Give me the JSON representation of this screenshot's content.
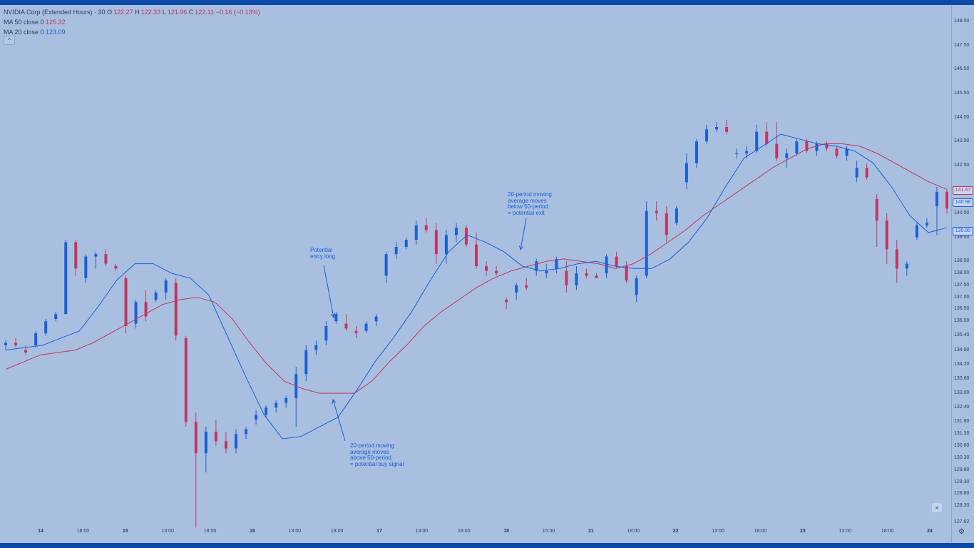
{
  "header": {
    "symbol": "NVIDIA Corp (Extended Hours) · 30",
    "o_label": "O",
    "o_value": "122.27",
    "h_label": "H",
    "h_value": "122.33",
    "l_label": "L",
    "l_value": "121.96",
    "c_label": "C",
    "c_value": "122.11",
    "change": "−0.16 (−0.13%)",
    "ma50_label": "MA 50 close 0",
    "ma50_value": "125.32",
    "ma20_label": "MA 20 close 0",
    "ma20_value": "123.09",
    "collapse_glyph": "^"
  },
  "annotations": {
    "entry": "Potential\nentry long",
    "exit": "20-period moving\naverage moves\nbelow 50-period\n= potential exit",
    "buy": "20-period moving\naverage moves\nabove 50-period\n= potential buy signal"
  },
  "price_axis": {
    "ticks": [
      "148.50",
      "147.50",
      "146.50",
      "145.50",
      "144.50",
      "143.50",
      "142.50",
      "141.47",
      "140.98",
      "140.50",
      "139.80",
      "139.50",
      "138.50",
      "138.00",
      "137.50",
      "137.00",
      "136.50",
      "136.00",
      "135.40",
      "134.80",
      "134.20",
      "133.60",
      "133.00",
      "132.40",
      "131.80",
      "131.30",
      "130.80",
      "130.30",
      "129.80",
      "129.30",
      "128.80",
      "128.30",
      "127.62"
    ],
    "badges": [
      {
        "value": "141.47",
        "color": "#c2365f"
      },
      {
        "value": "140.98",
        "color": "#1a5fd6"
      },
      {
        "value": "139.80",
        "color": "#1a5fd6"
      }
    ]
  },
  "time_axis": {
    "labels": [
      {
        "text": "14",
        "bold": true
      },
      {
        "text": "18:00",
        "bold": false
      },
      {
        "text": "15",
        "bold": true
      },
      {
        "text": "13:00",
        "bold": false
      },
      {
        "text": "18:00",
        "bold": false
      },
      {
        "text": "16",
        "bold": true
      },
      {
        "text": "13:00",
        "bold": false
      },
      {
        "text": "18:00",
        "bold": false
      },
      {
        "text": "17",
        "bold": true
      },
      {
        "text": "13:00",
        "bold": false
      },
      {
        "text": "18:00",
        "bold": false
      },
      {
        "text": "18",
        "bold": true
      },
      {
        "text": "15:00",
        "bold": false
      },
      {
        "text": "21",
        "bold": true
      },
      {
        "text": "18:00",
        "bold": false
      },
      {
        "text": "22",
        "bold": true
      },
      {
        "text": "13:00",
        "bold": false
      },
      {
        "text": "18:00",
        "bold": false
      },
      {
        "text": "23",
        "bold": true
      },
      {
        "text": "13:00",
        "bold": false
      },
      {
        "text": "18:00",
        "bold": false
      },
      {
        "text": "24",
        "bold": true
      }
    ]
  },
  "colors": {
    "up": "#1a5fd6",
    "down": "#c2365f",
    "ma50": "#c2365f",
    "ma20": "#1a5fd6"
  },
  "chart_data": {
    "type": "candlestick",
    "title": "NVIDIA Corp (Extended Hours) · 30",
    "ylim": [
      127.62,
      148.8
    ],
    "series": [
      {
        "name": "MA 50 close 0",
        "values": [
          134.0,
          134.3,
          134.6,
          134.7,
          134.8,
          135.1,
          135.5,
          135.9,
          136.3,
          136.7,
          136.9,
          137.0,
          136.8,
          136.1,
          135.1,
          134.2,
          133.5,
          133.2,
          133.0,
          133.0,
          133.0,
          133.5,
          134.3,
          135.0,
          135.8,
          136.4,
          136.9,
          137.4,
          137.8,
          138.1,
          138.3,
          138.5,
          138.6,
          138.5,
          138.4,
          138.2,
          138.4,
          138.8,
          139.3,
          139.8,
          140.4,
          140.9,
          141.4,
          141.9,
          142.4,
          142.8,
          143.2,
          143.4,
          143.4,
          143.3,
          143.0,
          142.6,
          142.2,
          141.8,
          141.5
        ]
      },
      {
        "name": "MA 20 close 0",
        "values": [
          134.8,
          134.9,
          135.0,
          135.3,
          135.6,
          136.6,
          137.7,
          138.4,
          138.4,
          138.0,
          137.8,
          137.1,
          135.4,
          133.7,
          132.1,
          131.1,
          131.2,
          131.6,
          132.0,
          133.1,
          134.3,
          135.3,
          136.4,
          137.7,
          138.9,
          139.6,
          139.3,
          138.9,
          138.3,
          138.1,
          138.2,
          138.4,
          138.5,
          138.3,
          138.2,
          138.2,
          138.6,
          139.3,
          140.3,
          141.6,
          142.8,
          143.3,
          143.8,
          143.6,
          143.4,
          143.3,
          143.1,
          142.6,
          141.6,
          140.4,
          139.7,
          139.9
        ]
      },
      {
        "name": "price",
        "values": [
          [
            135.0,
            135.2,
            134.8,
            135.1
          ],
          [
            135.1,
            135.3,
            134.9,
            135.0
          ],
          [
            134.8,
            135.0,
            134.6,
            134.7
          ],
          [
            135.0,
            135.6,
            134.9,
            135.5
          ],
          [
            135.5,
            136.1,
            135.4,
            136.0
          ],
          [
            136.1,
            136.4,
            136.0,
            136.3
          ],
          [
            136.3,
            139.4,
            136.3,
            139.3
          ],
          [
            139.3,
            139.4,
            137.9,
            138.2
          ],
          [
            137.8,
            138.8,
            137.6,
            138.7
          ],
          [
            138.7,
            138.9,
            138.2,
            138.8
          ],
          [
            138.8,
            139.0,
            138.3,
            138.4
          ],
          [
            138.3,
            138.4,
            138.1,
            138.2
          ],
          [
            137.8,
            137.9,
            135.5,
            135.8
          ],
          [
            135.9,
            136.9,
            135.7,
            136.8
          ],
          [
            136.8,
            137.3,
            136.0,
            136.2
          ],
          [
            136.9,
            137.3,
            136.8,
            137.2
          ],
          [
            137.2,
            137.8,
            136.9,
            137.7
          ],
          [
            137.6,
            137.8,
            135.2,
            135.4
          ],
          [
            135.3,
            135.4,
            131.6,
            131.8
          ],
          [
            131.8,
            132.2,
            127.4,
            130.5
          ],
          [
            130.5,
            131.6,
            129.7,
            131.4
          ],
          [
            131.4,
            131.9,
            130.8,
            131.0
          ],
          [
            131.0,
            131.4,
            130.5,
            130.7
          ],
          [
            130.7,
            131.5,
            130.5,
            131.3
          ],
          [
            131.3,
            131.6,
            131.1,
            131.5
          ],
          [
            131.9,
            132.3,
            131.7,
            132.1
          ],
          [
            132.1,
            132.5,
            132.0,
            132.4
          ],
          [
            132.4,
            132.7,
            132.2,
            132.6
          ],
          [
            132.6,
            132.9,
            132.4,
            132.8
          ],
          [
            132.8,
            134.1,
            131.6,
            133.8
          ],
          [
            133.8,
            135.0,
            133.5,
            134.8
          ],
          [
            134.8,
            135.2,
            134.6,
            135.0
          ],
          [
            135.2,
            136.0,
            135.0,
            135.8
          ],
          [
            136.0,
            136.4,
            135.9,
            136.3
          ],
          [
            135.9,
            136.3,
            135.6,
            135.7
          ],
          [
            135.6,
            135.8,
            135.3,
            135.5
          ],
          [
            135.6,
            136.0,
            135.5,
            135.9
          ],
          [
            136.0,
            136.3,
            135.8,
            136.2
          ],
          [
            137.9,
            138.9,
            137.6,
            138.8
          ],
          [
            138.8,
            139.3,
            138.6,
            139.1
          ],
          [
            139.1,
            139.5,
            139.0,
            139.4
          ],
          [
            139.4,
            140.2,
            139.2,
            140.0
          ],
          [
            140.0,
            140.3,
            139.7,
            139.8
          ],
          [
            139.8,
            140.1,
            138.4,
            138.8
          ],
          [
            138.8,
            139.8,
            138.4,
            139.6
          ],
          [
            139.6,
            140.1,
            139.3,
            139.9
          ],
          [
            139.9,
            140.0,
            139.1,
            139.2
          ],
          [
            139.2,
            139.7,
            138.2,
            138.3
          ],
          [
            138.3,
            138.5,
            137.9,
            138.1
          ],
          [
            138.1,
            138.3,
            137.9,
            138.0
          ],
          [
            136.9,
            137.0,
            136.5,
            136.8
          ],
          [
            137.2,
            137.6,
            136.9,
            137.5
          ],
          [
            137.5,
            137.8,
            137.3,
            137.4
          ],
          [
            138.1,
            138.6,
            137.9,
            138.5
          ],
          [
            138.0,
            138.4,
            137.8,
            138.1
          ],
          [
            138.2,
            138.7,
            138.0,
            138.6
          ],
          [
            138.1,
            138.5,
            137.2,
            137.5
          ],
          [
            137.5,
            138.3,
            137.3,
            138.0
          ],
          [
            138.0,
            138.2,
            137.8,
            137.9
          ],
          [
            137.9,
            138.0,
            137.8,
            137.8
          ],
          [
            138.0,
            138.8,
            137.8,
            138.7
          ],
          [
            138.7,
            138.9,
            138.2,
            138.3
          ],
          [
            138.3,
            138.5,
            137.6,
            137.7
          ],
          [
            137.1,
            137.9,
            136.8,
            137.8
          ],
          [
            137.9,
            141.0,
            137.8,
            140.6
          ],
          [
            140.6,
            141.0,
            140.2,
            140.5
          ],
          [
            140.5,
            140.8,
            139.3,
            139.6
          ],
          [
            140.1,
            140.8,
            140.0,
            140.7
          ],
          [
            141.8,
            143.0,
            141.5,
            142.6
          ],
          [
            142.6,
            143.6,
            142.4,
            143.5
          ],
          [
            143.5,
            144.2,
            143.4,
            144.0
          ],
          [
            144.0,
            144.3,
            143.9,
            144.1
          ],
          [
            144.1,
            144.4,
            143.8,
            143.9
          ],
          [
            143.0,
            143.2,
            142.8,
            143.0
          ],
          [
            143.0,
            143.3,
            142.8,
            143.1
          ],
          [
            143.1,
            144.2,
            143.0,
            143.9
          ],
          [
            143.9,
            144.3,
            143.3,
            143.4
          ],
          [
            143.4,
            144.3,
            142.7,
            142.8
          ],
          [
            142.8,
            143.2,
            142.4,
            143.0
          ],
          [
            143.0,
            143.6,
            142.9,
            143.5
          ],
          [
            143.5,
            143.6,
            143.0,
            143.1
          ],
          [
            143.1,
            143.5,
            142.9,
            143.4
          ],
          [
            143.4,
            143.5,
            143.1,
            143.2
          ],
          [
            143.2,
            143.3,
            142.8,
            142.9
          ],
          [
            142.9,
            143.3,
            142.7,
            143.2
          ],
          [
            142.0,
            142.7,
            141.8,
            142.4
          ],
          [
            142.4,
            142.6,
            141.9,
            142.0
          ],
          [
            141.1,
            141.3,
            139.1,
            140.2
          ],
          [
            140.2,
            140.5,
            138.4,
            139.0
          ],
          [
            139.0,
            139.4,
            137.6,
            138.2
          ],
          [
            138.2,
            138.5,
            137.9,
            138.4
          ],
          [
            139.5,
            140.1,
            139.4,
            140.0
          ],
          [
            140.0,
            140.3,
            139.9,
            140.1
          ],
          [
            140.8,
            141.6,
            139.6,
            141.4
          ],
          [
            141.4,
            141.5,
            140.5,
            140.7
          ]
        ]
      }
    ],
    "x_ticks": [
      "14",
      "18:00",
      "15",
      "13:00",
      "18:00",
      "16",
      "13:00",
      "18:00",
      "17",
      "13:00",
      "18:00",
      "18",
      "15:00",
      "21",
      "18:00",
      "22",
      "13:00",
      "18:00",
      "23",
      "13:00",
      "18:00",
      "24"
    ],
    "legend": "top-left",
    "grid": false
  }
}
